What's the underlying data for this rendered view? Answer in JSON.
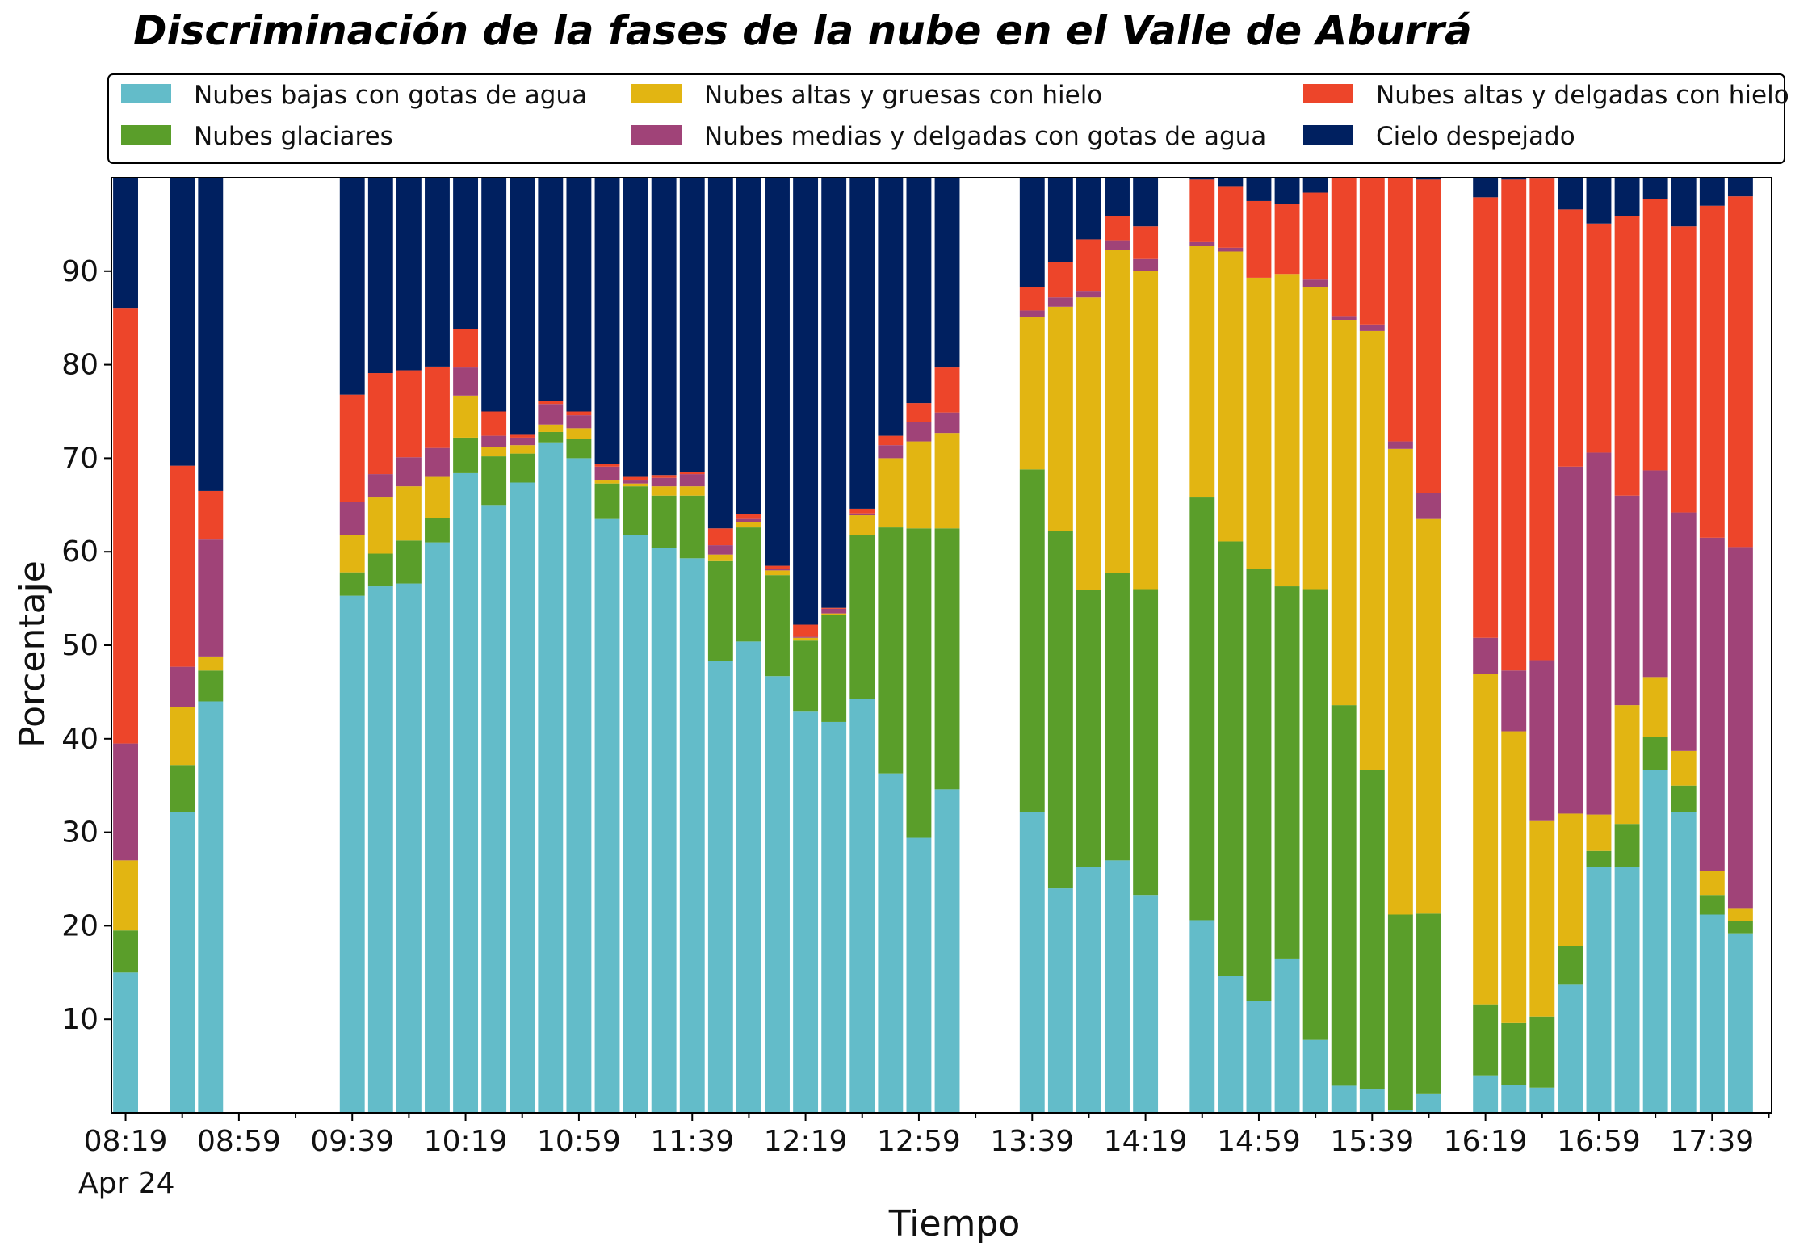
{
  "chart_data": {
    "type": "bar",
    "stacked": true,
    "title": "Discriminación de la fases de la nube en el Valle de Aburrá",
    "xlabel": "Tiempo",
    "ylabel": "Porcentaje",
    "ylim": [
      0,
      100
    ],
    "yticks": [
      10,
      20,
      30,
      40,
      50,
      60,
      70,
      80,
      90
    ],
    "xlim": [
      0,
      58.6
    ],
    "x_tick_labels": [
      {
        "x": 0.5,
        "label": "08:19"
      },
      {
        "x": 4.5,
        "label": "08:59"
      },
      {
        "x": 8.5,
        "label": "09:39"
      },
      {
        "x": 12.5,
        "label": "10:19"
      },
      {
        "x": 16.5,
        "label": "10:59"
      },
      {
        "x": 20.5,
        "label": "11:39"
      },
      {
        "x": 24.5,
        "label": "12:19"
      },
      {
        "x": 28.5,
        "label": "12:59"
      },
      {
        "x": 32.5,
        "label": "13:39"
      },
      {
        "x": 36.5,
        "label": "14:19"
      },
      {
        "x": 40.5,
        "label": "14:59"
      },
      {
        "x": 44.5,
        "label": "15:39"
      },
      {
        "x": 48.5,
        "label": "16:19"
      },
      {
        "x": 52.5,
        "label": "16:59"
      },
      {
        "x": 56.5,
        "label": "17:39"
      }
    ],
    "x_date_label": "Apr 24",
    "legend_position": "top",
    "series": [
      {
        "name": "Nubes bajas con gotas de agua",
        "color": "#63bcc9"
      },
      {
        "name": "Nubes glaciares",
        "color": "#5a9e2a"
      },
      {
        "name": "Nubes altas y gruesas con hielo",
        "color": "#e2b512"
      },
      {
        "name": "Nubes medias y delgadas con gotas de agua",
        "color": "#a04378"
      },
      {
        "name": "Nubes altas y delgadas con hielo",
        "color": "#ed452a"
      },
      {
        "name": "Cielo despejado",
        "color": "#002060"
      }
    ],
    "bars": [
      {
        "x": 0,
        "values": [
          15,
          4.5,
          7.5,
          12.5,
          46.5,
          14
        ]
      },
      {
        "x": 2,
        "values": [
          32.2,
          5,
          6.2,
          4.3,
          21.5,
          30.8
        ]
      },
      {
        "x": 3,
        "values": [
          44,
          3.3,
          1.5,
          12.5,
          5.2,
          33.5
        ]
      },
      {
        "x": 8,
        "values": [
          55.3,
          2.5,
          4,
          3.5,
          11.5,
          23.2
        ]
      },
      {
        "x": 9,
        "values": [
          56.3,
          3.5,
          6,
          2.5,
          10.8,
          20.9
        ]
      },
      {
        "x": 10,
        "values": [
          56.6,
          4.6,
          5.8,
          3.1,
          9.3,
          20.6
        ]
      },
      {
        "x": 11,
        "values": [
          61,
          2.6,
          4.4,
          3.1,
          8.7,
          20.2
        ]
      },
      {
        "x": 12,
        "values": [
          68.4,
          3.8,
          4.5,
          3,
          4.1,
          16.2
        ]
      },
      {
        "x": 13,
        "values": [
          65,
          5.2,
          1,
          1.2,
          2.6,
          25
        ]
      },
      {
        "x": 14,
        "values": [
          67.4,
          3.1,
          0.9,
          0.8,
          0.3,
          27.5
        ]
      },
      {
        "x": 15,
        "values": [
          71.7,
          1.1,
          0.8,
          2.2,
          0.3,
          23.9
        ]
      },
      {
        "x": 16,
        "values": [
          70,
          2.1,
          1.1,
          1.4,
          0.4,
          25
        ]
      },
      {
        "x": 17,
        "values": [
          63.5,
          3.8,
          0.4,
          1.4,
          0.3,
          30.6
        ]
      },
      {
        "x": 18,
        "values": [
          61.8,
          5.2,
          0.3,
          0.4,
          0.3,
          32
        ]
      },
      {
        "x": 19,
        "values": [
          60.4,
          5.6,
          1,
          0.9,
          0.3,
          31.8
        ]
      },
      {
        "x": 20,
        "values": [
          59.3,
          6.7,
          1,
          1.3,
          0.2,
          31.5
        ]
      },
      {
        "x": 21,
        "values": [
          48.3,
          10.7,
          0.7,
          1,
          1.8,
          37.5
        ]
      },
      {
        "x": 22,
        "values": [
          50.4,
          12.2,
          0.6,
          0.3,
          0.5,
          36
        ]
      },
      {
        "x": 23,
        "values": [
          46.7,
          10.8,
          0.5,
          0.2,
          0.3,
          41.5
        ]
      },
      {
        "x": 24,
        "values": [
          42.9,
          7.6,
          0.3,
          0.1,
          1.3,
          47.8
        ]
      },
      {
        "x": 25,
        "values": [
          41.8,
          11.4,
          0.2,
          0.5,
          0.1,
          46
        ]
      },
      {
        "x": 26,
        "values": [
          44.3,
          17.5,
          2.1,
          0.2,
          0.5,
          35.4
        ]
      },
      {
        "x": 27,
        "values": [
          36.3,
          26.3,
          7.4,
          1.4,
          1,
          27.6
        ]
      },
      {
        "x": 28,
        "values": [
          29.4,
          33.1,
          9.3,
          2.1,
          2,
          24.1
        ]
      },
      {
        "x": 29,
        "values": [
          34.6,
          27.9,
          10.2,
          2.2,
          4.8,
          20.3
        ]
      },
      {
        "x": 32,
        "values": [
          32.2,
          36.6,
          16.3,
          0.7,
          2.5,
          11.7
        ]
      },
      {
        "x": 33,
        "values": [
          24,
          38.2,
          24,
          1,
          3.8,
          9
        ]
      },
      {
        "x": 34,
        "values": [
          26.3,
          29.6,
          31.3,
          0.7,
          5.5,
          6.6
        ]
      },
      {
        "x": 35,
        "values": [
          27,
          30.7,
          34.6,
          1,
          2.6,
          4.1
        ]
      },
      {
        "x": 36,
        "values": [
          23.3,
          32.7,
          34,
          1.3,
          3.5,
          5.2
        ]
      },
      {
        "x": 38,
        "values": [
          20.6,
          45.2,
          26.9,
          0.4,
          6.7,
          0.2
        ]
      },
      {
        "x": 39,
        "values": [
          14.6,
          46.5,
          31,
          0.4,
          6.6,
          0.9
        ]
      },
      {
        "x": 40,
        "values": [
          12,
          46.2,
          31.1,
          0,
          8.2,
          2.5
        ]
      },
      {
        "x": 41,
        "values": [
          16.5,
          39.8,
          33.4,
          0,
          7.5,
          2.8
        ]
      },
      {
        "x": 42,
        "values": [
          7.8,
          48.2,
          32.3,
          0.8,
          9.3,
          1.6
        ]
      },
      {
        "x": 43,
        "values": [
          2.9,
          40.7,
          41.2,
          0.4,
          14.8,
          0
        ]
      },
      {
        "x": 44,
        "values": [
          2.5,
          34.2,
          46.9,
          0.7,
          15.7,
          0
        ]
      },
      {
        "x": 45,
        "values": [
          0.3,
          20.9,
          49.8,
          0.8,
          28.2,
          0
        ]
      },
      {
        "x": 46,
        "values": [
          2,
          19.3,
          42.2,
          2.8,
          33.5,
          0.2
        ]
      },
      {
        "x": 48,
        "values": [
          4,
          7.6,
          35.3,
          3.9,
          47.1,
          2.1
        ]
      },
      {
        "x": 49,
        "values": [
          3,
          6.6,
          31.2,
          6.5,
          52.5,
          0.2
        ]
      },
      {
        "x": 50,
        "values": [
          2.7,
          7.6,
          20.9,
          17.2,
          51.5,
          0.1
        ]
      },
      {
        "x": 51,
        "values": [
          13.7,
          4.1,
          14.2,
          37.1,
          27.5,
          3.4
        ]
      },
      {
        "x": 52,
        "values": [
          26.3,
          1.7,
          3.9,
          38.7,
          24.5,
          4.9
        ]
      },
      {
        "x": 53,
        "values": [
          26.3,
          4.6,
          12.7,
          22.4,
          29.9,
          4.1
        ]
      },
      {
        "x": 54,
        "values": [
          36.7,
          3.5,
          6.4,
          22.1,
          29,
          2.3
        ]
      },
      {
        "x": 55,
        "values": [
          32.2,
          2.8,
          3.7,
          25.5,
          30.6,
          5.2
        ]
      },
      {
        "x": 56,
        "values": [
          21.2,
          2.1,
          2.6,
          35.6,
          35.5,
          3
        ]
      },
      {
        "x": 57,
        "values": [
          19.2,
          1.3,
          1.4,
          38.6,
          37.5,
          2
        ]
      }
    ]
  }
}
